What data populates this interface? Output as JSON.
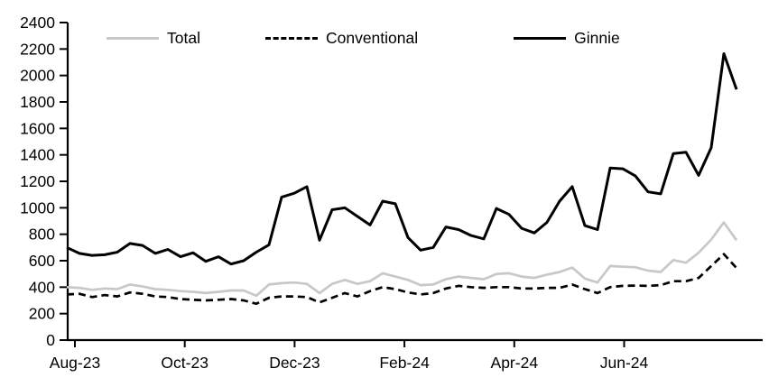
{
  "chart_data": {
    "type": "line",
    "title": "",
    "xlabel": "",
    "ylabel": "",
    "x_tick_labels": [
      "Aug-23",
      "Oct-23",
      "Dec-23",
      "Feb-24",
      "Apr-24",
      "Jun-24"
    ],
    "y_ticks": [
      0,
      200,
      400,
      600,
      800,
      1000,
      1200,
      1400,
      1600,
      1800,
      2000,
      2200,
      2400
    ],
    "ylim": [
      0,
      2400
    ],
    "grid": false,
    "legend_position": "top-inside",
    "series": [
      {
        "name": "Total",
        "color": "#c8c8c8",
        "style": "solid",
        "values": [
          400,
          395,
          380,
          390,
          385,
          420,
          405,
          385,
          380,
          370,
          365,
          355,
          365,
          375,
          375,
          335,
          420,
          430,
          435,
          425,
          355,
          425,
          455,
          425,
          445,
          505,
          480,
          455,
          415,
          420,
          460,
          480,
          470,
          460,
          500,
          505,
          480,
          470,
          495,
          515,
          548,
          465,
          435,
          560,
          555,
          550,
          525,
          515,
          605,
          585,
          660,
          760,
          890,
          755
        ]
      },
      {
        "name": "Conventional",
        "color": "#000000",
        "style": "dashed",
        "values": [
          345,
          350,
          325,
          340,
          330,
          360,
          350,
          330,
          325,
          310,
          305,
          300,
          305,
          310,
          300,
          275,
          320,
          330,
          330,
          325,
          285,
          320,
          355,
          330,
          370,
          400,
          385,
          360,
          345,
          355,
          390,
          410,
          400,
          395,
          400,
          400,
          390,
          390,
          395,
          395,
          420,
          385,
          355,
          400,
          410,
          412,
          410,
          415,
          445,
          445,
          470,
          560,
          650,
          545
        ]
      },
      {
        "name": "Ginnie",
        "color": "#000000",
        "style": "solid",
        "values": [
          700,
          655,
          640,
          645,
          665,
          730,
          715,
          655,
          685,
          630,
          660,
          595,
          630,
          575,
          600,
          665,
          720,
          1080,
          1110,
          1160,
          755,
          985,
          1000,
          935,
          870,
          1050,
          1030,
          775,
          680,
          700,
          855,
          835,
          790,
          765,
          995,
          950,
          845,
          810,
          890,
          1050,
          1160,
          865,
          835,
          1300,
          1295,
          1240,
          1120,
          1105,
          1410,
          1420,
          1245,
          1455,
          2165,
          1895
        ]
      }
    ]
  },
  "legend": {
    "total_label": "Total",
    "conventional_label": "Conventional",
    "ginnie_label": "Ginnie"
  },
  "colors": {
    "axis": "#000000",
    "total_line": "#c8c8c8",
    "black_line": "#000000",
    "background": "#ffffff"
  }
}
